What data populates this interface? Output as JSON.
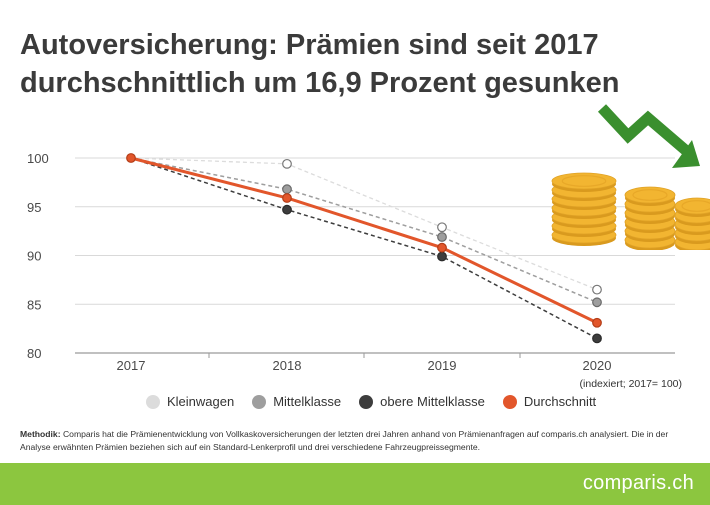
{
  "title": "Autoversicherung: Prämien sind seit 2017 durchschnittlich um 16,9 Prozent gesunken",
  "note": "(indexiert; 2017= 100)",
  "methodik_label": "Methodik:",
  "methodik_text": "Comparis hat die Prämienentwicklung von Vollkaskoversicherungen der letzten drei Jahren anhand von Prämienanfragen auf comparis.ch analysiert. Die in der Analyse erwähnten Prämien beziehen sich auf ein Standard-Lenkerprofil und drei verschiedene Fahrzeugpreissegmente.",
  "logo": "comparis.ch",
  "colors": {
    "kleinwagen": "#dcdcdc",
    "mittelklasse": "#9e9e9e",
    "obere_mittelklasse": "#3d3d3d",
    "durchschnitt": "#e2562b",
    "green": "#8cc63f",
    "arrow": "#3a8f2e",
    "coin": "#f2b531"
  },
  "chart_data": {
    "type": "line",
    "categories": [
      "2017",
      "2018",
      "2019",
      "2020"
    ],
    "ylim": [
      80,
      100
    ],
    "yticks": [
      100,
      95,
      90,
      85,
      80
    ],
    "legend_position": "bottom",
    "series": [
      {
        "name": "Kleinwagen",
        "values": [
          100,
          99.4,
          92.9,
          86.5
        ]
      },
      {
        "name": "Mittelklasse",
        "values": [
          100,
          96.8,
          91.9,
          85.2
        ]
      },
      {
        "name": "obere Mittelklasse",
        "values": [
          100,
          94.7,
          89.9,
          81.5
        ]
      },
      {
        "name": "Durchschnitt",
        "values": [
          100,
          95.9,
          90.8,
          83.1
        ]
      }
    ]
  }
}
